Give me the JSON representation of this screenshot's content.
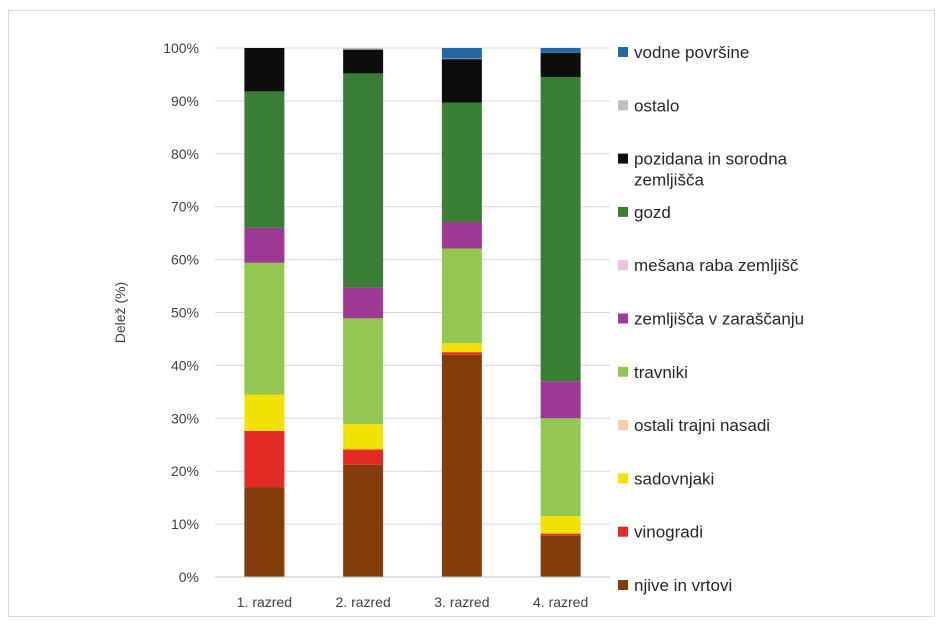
{
  "chart_data": {
    "type": "bar",
    "stacked": true,
    "ylabel": "Delež (%)",
    "xlabel": "",
    "ylim": [
      0,
      100
    ],
    "yticks": [
      "0%",
      "10%",
      "20%",
      "30%",
      "40%",
      "50%",
      "60%",
      "70%",
      "80%",
      "90%",
      "100%"
    ],
    "grid": true,
    "legend_position": "right",
    "categories": [
      "1. razred",
      "2. razred",
      "3. razred",
      "4. razred"
    ],
    "series": [
      {
        "name": "njive in vrtovi",
        "color": "#843C0C",
        "values": [
          17.0,
          21.2,
          42.0,
          7.8
        ]
      },
      {
        "name": "vinogradi",
        "color": "#E32B24",
        "values": [
          10.6,
          2.9,
          0.5,
          0.4
        ]
      },
      {
        "name": "sadovnjaki",
        "color": "#F2E200",
        "values": [
          6.9,
          4.8,
          1.7,
          3.3
        ]
      },
      {
        "name": "ostali trajni nasadi",
        "color": "#F8CBAD",
        "values": [
          0.0,
          0.0,
          0.0,
          0.0
        ]
      },
      {
        "name": "travniki",
        "color": "#92C84F",
        "values": [
          24.9,
          20.0,
          17.9,
          18.5
        ]
      },
      {
        "name": "zemljišča v zaraščanju",
        "color": "#9E3A93",
        "values": [
          6.6,
          5.8,
          5.0,
          7.0
        ]
      },
      {
        "name": "mešana raba zemljišč",
        "color": "#E9C2E3",
        "values": [
          0.0,
          0.0,
          0.0,
          0.0
        ]
      },
      {
        "name": "gozd",
        "color": "#3A7D34",
        "values": [
          25.8,
          40.5,
          22.6,
          57.5
        ]
      },
      {
        "name": "pozidana in sorodna zemljišča",
        "color": "#0D0D0D",
        "values": [
          8.2,
          4.5,
          8.2,
          4.6
        ]
      },
      {
        "name": "ostalo",
        "color": "#BFBFBF",
        "values": [
          0.0,
          0.3,
          0.1,
          0.0
        ]
      },
      {
        "name": "vodne površine",
        "color": "#2467A7",
        "values": [
          0.0,
          0.0,
          2.0,
          0.9
        ]
      }
    ],
    "legend_lines": [
      [
        "vodne površine"
      ],
      [
        "ostalo"
      ],
      [
        "pozidana in sorodna",
        "zemljišča"
      ],
      [
        "gozd"
      ],
      [
        "mešana raba zemljišč"
      ],
      [
        "zemljišča v zaraščanju"
      ],
      [
        "travniki"
      ],
      [
        "ostali trajni nasadi"
      ],
      [
        "sadovnjaki"
      ],
      [
        "vinogradi"
      ],
      [
        "njive in vrtovi"
      ]
    ]
  }
}
